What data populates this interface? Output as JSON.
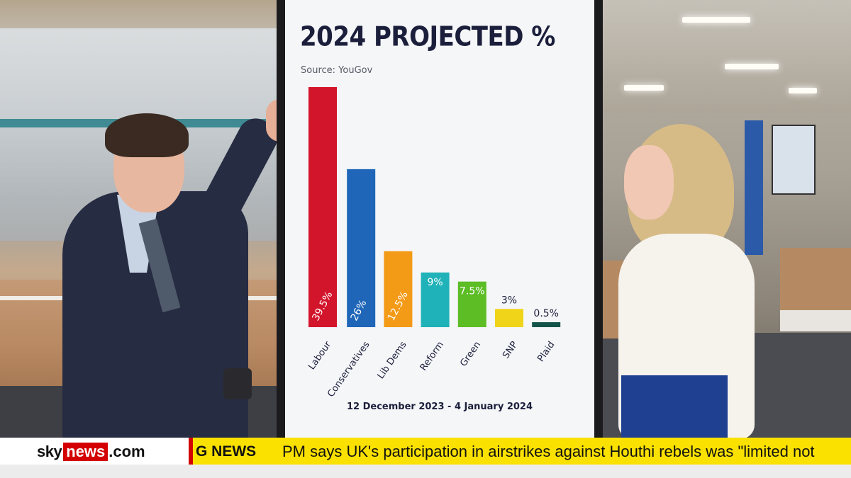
{
  "chart_data": {
    "type": "bar",
    "title": "2024 PROJECTED %",
    "subtitle": "Source: YouGov",
    "date_range": "12 December 2023 - 4 January 2024",
    "categories": [
      "Labour",
      "Conservatives",
      "Lib Dems",
      "Reform",
      "Green",
      "SNP",
      "Plaid"
    ],
    "values": [
      39.5,
      26,
      12.5,
      9,
      7.5,
      3,
      0.5
    ],
    "value_labels": [
      "39.5%",
      "26%",
      "12.5%",
      "9%",
      "7.5%",
      "3%",
      "0.5%"
    ],
    "colors": [
      "#d3152c",
      "#1f66b8",
      "#f39a17",
      "#1fb2b8",
      "#5cbd25",
      "#f0d41a",
      "#13544a"
    ],
    "ylim": [
      0,
      39.5
    ],
    "grid": false,
    "legend": "none"
  },
  "ticker": {
    "logo_sky": "sky",
    "logo_news": "news",
    "logo_com": ".com",
    "breaking_label": "G NEWS",
    "headline": "PM says UK's participation in airstrikes against Houthi rebels was \"limited not"
  }
}
